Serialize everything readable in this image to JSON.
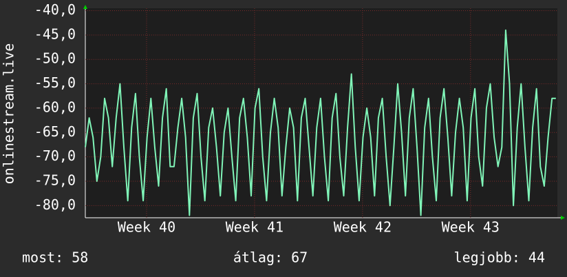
{
  "chart_data": {
    "type": "line",
    "ylabel": "onlinestream.live",
    "x": [
      0,
      0.25,
      0.5,
      0.75,
      1,
      1.25,
      1.5,
      1.75,
      2,
      2.25,
      2.5,
      2.75,
      3,
      3.25,
      3.5,
      3.75,
      4,
      4.25,
      4.5,
      4.75,
      5,
      5.25,
      5.5,
      5.75,
      6,
      6.25,
      6.5,
      6.75,
      7,
      7.25,
      7.5,
      7.75,
      8,
      8.25,
      8.5,
      8.75,
      9,
      9.25,
      9.5,
      9.75,
      10,
      10.25,
      10.5,
      10.75,
      11,
      11.25,
      11.5,
      11.75,
      12,
      12.25,
      12.5,
      12.75,
      13,
      13.25,
      13.5,
      13.75,
      14,
      14.25,
      14.5,
      14.75,
      15,
      15.25,
      15.5,
      15.75,
      16,
      16.25,
      16.5,
      16.75,
      17,
      17.25,
      17.5,
      17.75,
      18,
      18.25,
      18.5,
      18.75,
      19,
      19.25,
      19.5,
      19.75,
      20,
      20.25,
      20.5,
      20.75,
      21,
      21.25,
      21.5,
      21.75,
      22,
      22.25,
      22.5,
      22.75,
      23,
      23.25,
      23.5,
      23.75,
      24,
      24.25,
      24.5,
      24.75,
      25,
      25.25,
      25.5,
      25.75,
      26,
      26.25,
      26.5,
      26.75,
      27,
      27.25,
      27.5,
      27.75,
      28,
      28.25,
      28.5,
      28.75,
      29,
      29.25,
      29.5,
      29.75,
      30,
      30.25,
      30.5
    ],
    "series": [
      {
        "color": "#80f5b8",
        "values": [
          -68,
          -62,
          -66,
          -75,
          -70,
          -58,
          -62,
          -72,
          -62,
          -55,
          -68,
          -79,
          -64,
          -57,
          -70,
          -79,
          -66,
          -58,
          -68,
          -76,
          -62,
          -56,
          -72,
          -72,
          -64,
          -58,
          -66,
          -82,
          -62,
          -57,
          -70,
          -79,
          -64,
          -60,
          -68,
          -78,
          -65,
          -60,
          -70,
          -79,
          -62,
          -58,
          -66,
          -78,
          -60,
          -56,
          -70,
          -79,
          -65,
          -58,
          -64,
          -78,
          -68,
          -60,
          -64,
          -79,
          -62,
          -58,
          -68,
          -78,
          -64,
          -58,
          -70,
          -79,
          -62,
          -57,
          -70,
          -78,
          -64,
          -53,
          -68,
          -79,
          -66,
          -60,
          -66,
          -78,
          -62,
          -58,
          -70,
          -80,
          -68,
          -55,
          -65,
          -78,
          -62,
          -56,
          -68,
          -82,
          -64,
          -58,
          -70,
          -79,
          -62,
          -56,
          -66,
          -78,
          -65,
          -58,
          -64,
          -79,
          -62,
          -56,
          -70,
          -76,
          -60,
          -55,
          -66,
          -72,
          -68,
          -44,
          -55,
          -80,
          -64,
          -55,
          -68,
          -79,
          -64,
          -56,
          -72,
          -76,
          -66,
          -58,
          -58
        ]
      }
    ],
    "xlim": [
      0,
      30.6
    ],
    "xticks": [
      {
        "value": 3.97,
        "label": "Week 40"
      },
      {
        "value": 10.97,
        "label": "Week 41"
      },
      {
        "value": 17.97,
        "label": "Week 42"
      },
      {
        "value": 24.97,
        "label": "Week 43"
      }
    ],
    "ylim": [
      -82.5,
      -39.5
    ],
    "yticks": [
      {
        "value": -40,
        "label": "-40,0"
      },
      {
        "value": -45,
        "label": "-45,0"
      },
      {
        "value": -50,
        "label": "-50,0"
      },
      {
        "value": -55,
        "label": "-55,0"
      },
      {
        "value": -60,
        "label": "-60,0"
      },
      {
        "value": -65,
        "label": "-65,0"
      },
      {
        "value": -70,
        "label": "-70,0"
      },
      {
        "value": -75,
        "label": "-75,0"
      },
      {
        "value": -80,
        "label": "-80,0"
      }
    ],
    "grid": true,
    "footer": [
      "most: 58",
      "átlag: 67",
      "legjobb: 44"
    ]
  }
}
